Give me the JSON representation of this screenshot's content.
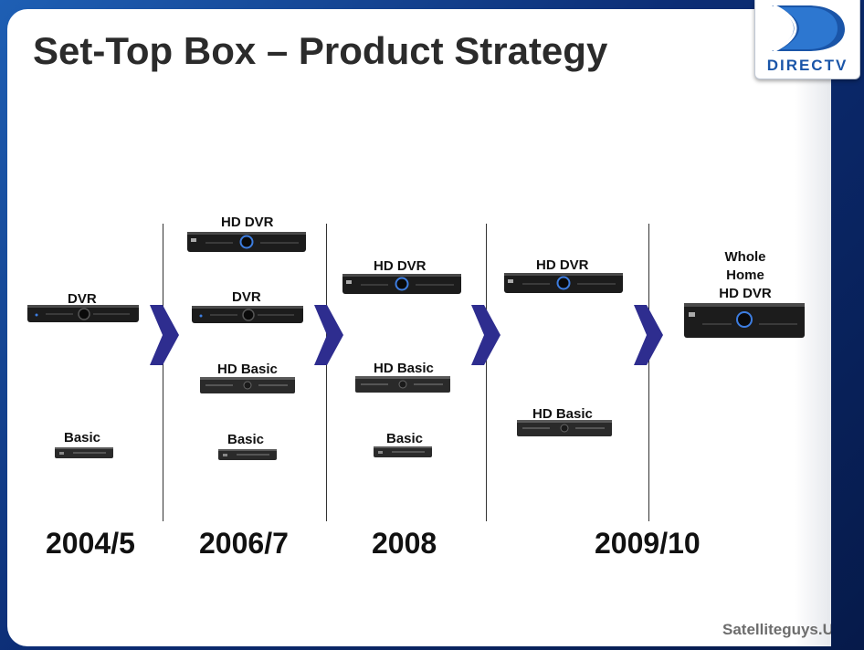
{
  "slide": {
    "title": "Set-Top Box – Product Strategy",
    "logo_text": "DIRECTV",
    "watermark": "Satelliteguys.US"
  },
  "years": [
    "2004/5",
    "2006/7",
    "2008",
    "2009/10"
  ],
  "stages": [
    {
      "items": [
        "DVR",
        "Basic"
      ]
    },
    {
      "items": [
        "HD DVR",
        "DVR",
        "HD Basic",
        "Basic"
      ]
    },
    {
      "items": [
        "HD DVR",
        "HD Basic",
        "Basic"
      ]
    },
    {
      "items": [
        "HD DVR",
        "HD Basic"
      ]
    },
    {
      "items": [
        "Whole Home HD DVR"
      ]
    }
  ],
  "whole_home_lines": [
    "Whole",
    "Home",
    "HD DVR"
  ],
  "colors": {
    "title": "#2b2b2b",
    "arrow": "#2e2d8f",
    "logo_blue": "#1a55a8",
    "device": "#1c1c1c"
  }
}
